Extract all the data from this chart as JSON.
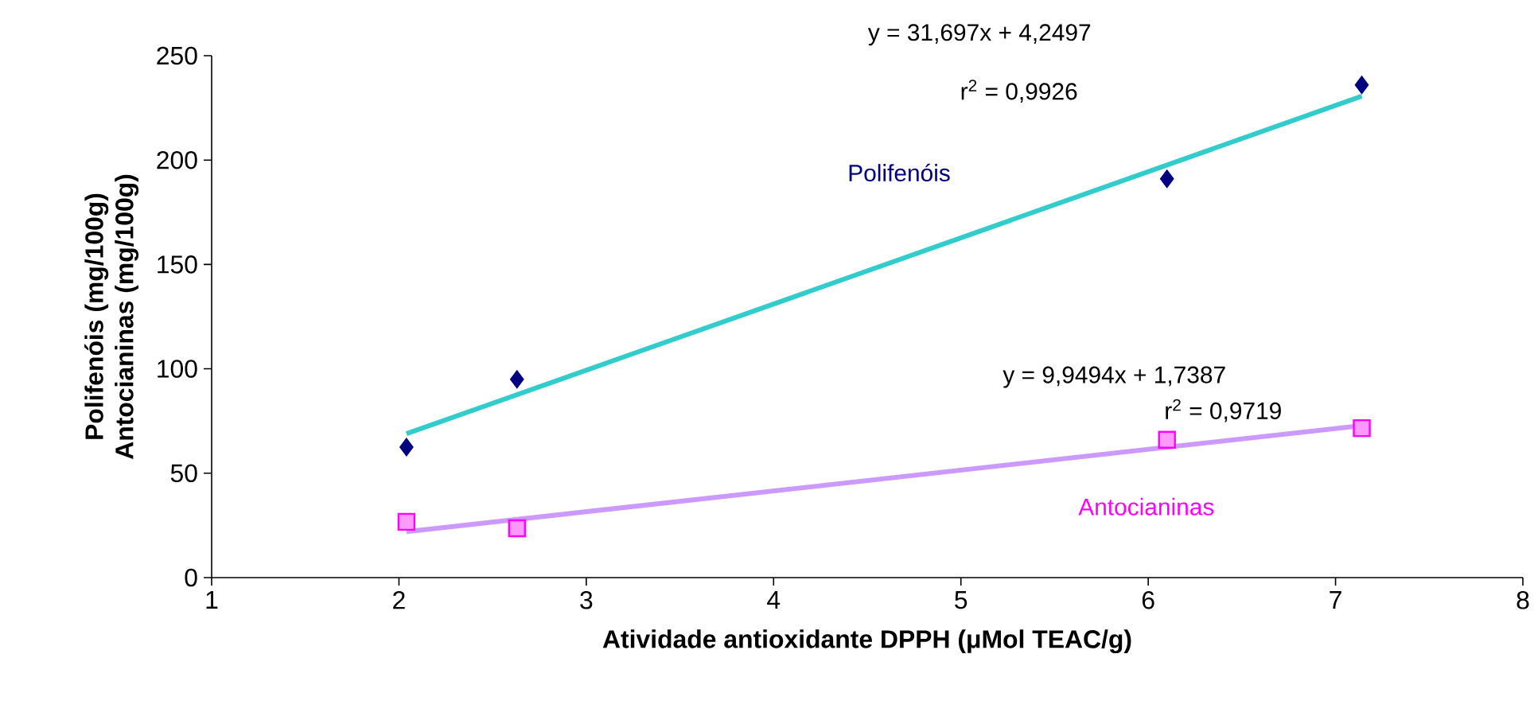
{
  "chart_data": {
    "type": "scatter",
    "xlabel": "Atividade antioxidante DPPH (μMol TEAC/g)",
    "ylabel": "Polifenóis (mg/100g) Antocianinas (mg/100g)",
    "xlim": [
      1,
      8
    ],
    "ylim": [
      0,
      250
    ],
    "xticks": [
      1,
      2,
      3,
      4,
      5,
      6,
      7,
      8
    ],
    "yticks": [
      0,
      50,
      100,
      150,
      200,
      250
    ],
    "series": [
      {
        "name": "Polifenóis",
        "color": "#000080",
        "marker": "diamond",
        "x": [
          2.04,
          2.63,
          6.1,
          7.14
        ],
        "values": [
          62.5,
          95,
          191,
          236
        ]
      },
      {
        "type": "line",
        "color": "#33cccc",
        "x": [
          2.04,
          7.14
        ],
        "values": [
          68.9,
          230.6
        ]
      },
      {
        "name": "Antocianinas",
        "color": "#ff00ff",
        "marker": "square",
        "x": [
          2.04,
          2.63,
          6.1,
          7.14
        ],
        "values": [
          26.7,
          23.6,
          66,
          71.6
        ]
      },
      {
        "type": "line",
        "color": "#cc99ff",
        "x": [
          2.04,
          7.14
        ],
        "values": [
          22.0,
          72.8
        ]
      }
    ],
    "annotations": [
      "y = 31,697x + 4,2497",
      "r$^{2}$ = 0,9926",
      "y = 9,9494x + 1,7387",
      "r$^{2}$ = 0,9719"
    ]
  }
}
